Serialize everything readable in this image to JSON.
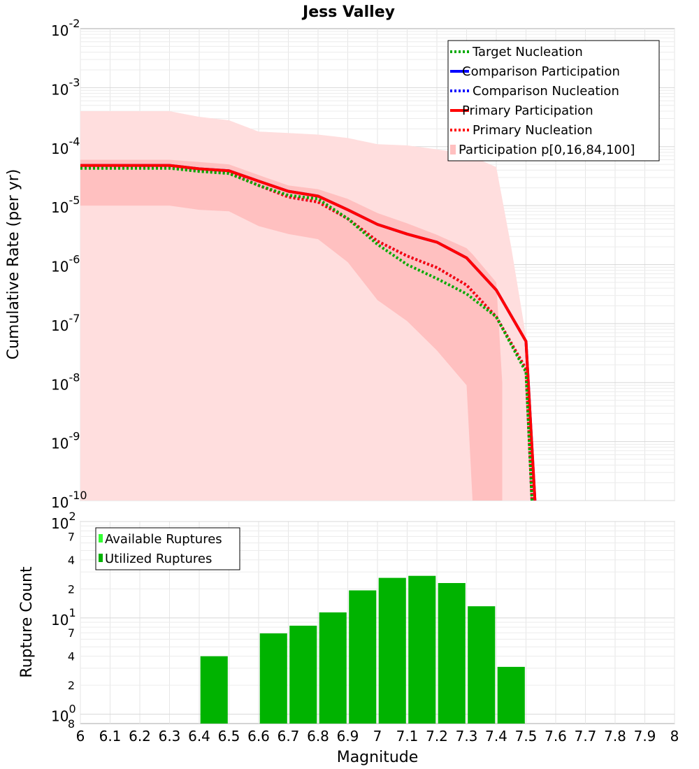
{
  "chart_data": [
    {
      "type": "line",
      "title": "Jess Valley",
      "ylabel": "Cumulative Rate (per yr)",
      "xlabel": "",
      "xlim": [
        6,
        8
      ],
      "ylim_log10": [
        -10,
        -2
      ],
      "y_scale": "log",
      "y_tick_labels": [
        {
          "base": "10",
          "exp": "-2"
        },
        {
          "base": "10",
          "exp": "-3"
        },
        {
          "base": "10",
          "exp": "-4"
        },
        {
          "base": "10",
          "exp": "-5"
        },
        {
          "base": "10",
          "exp": "-6"
        },
        {
          "base": "10",
          "exp": "-7"
        },
        {
          "base": "10",
          "exp": "-8"
        },
        {
          "base": "10",
          "exp": "-9"
        },
        {
          "base": "10",
          "exp": "-10"
        }
      ],
      "bands": [
        {
          "name": "Participation p[0,100]",
          "x": [
            6.0,
            6.3,
            6.4,
            6.5,
            6.6,
            6.7,
            6.8,
            6.9,
            7.0,
            7.1,
            7.2,
            7.3,
            7.4,
            7.45,
            7.5,
            7.52
          ],
          "hi": [
            0.0004,
            0.0004,
            0.00032,
            0.00028,
            0.00018,
            0.00017,
            0.00016,
            0.00014,
            0.00011,
            0.000105,
            9e-05,
            7.5e-05,
            4.5e-05,
            2e-06,
            6e-08,
            1e-10
          ],
          "lo": [
            1e-10,
            1e-10,
            1e-10,
            1e-10,
            1e-10,
            1e-10,
            1e-10,
            1e-10,
            1e-10,
            1e-10,
            1e-10,
            1e-10,
            1e-10,
            1e-10,
            1e-10,
            1e-10
          ]
        },
        {
          "name": "Participation p[16,84]",
          "x": [
            6.0,
            6.3,
            6.4,
            6.5,
            6.6,
            6.7,
            6.8,
            6.9,
            7.0,
            7.1,
            7.2,
            7.3,
            7.32,
            7.4,
            7.42
          ],
          "hi": [
            6e-05,
            6e-05,
            5.5e-05,
            5e-05,
            3.3e-05,
            2.2e-05,
            1.9e-05,
            1.3e-05,
            7.5e-06,
            5e-06,
            3.2e-06,
            1.9e-06,
            1.5e-06,
            5e-07,
            1e-08
          ],
          "lo": [
            1e-05,
            1e-05,
            8.5e-06,
            8e-06,
            4.5e-06,
            3.3e-06,
            2.7e-06,
            1.1e-06,
            2.5e-07,
            1.1e-07,
            3.5e-08,
            9e-09,
            1e-10,
            1e-10,
            1e-10
          ]
        }
      ],
      "series": [
        {
          "name": "Target Nucleation",
          "style": "dotted",
          "color": "#00aa00",
          "x": [
            6.0,
            6.3,
            6.4,
            6.5,
            6.6,
            6.7,
            6.8,
            6.9,
            7.0,
            7.1,
            7.2,
            7.3,
            7.4,
            7.5,
            7.52
          ],
          "values": [
            4.3e-05,
            4.3e-05,
            3.8e-05,
            3.5e-05,
            2.2e-05,
            1.5e-05,
            1.3e-05,
            6e-06,
            2.2e-06,
            1e-06,
            5.8e-07,
            3.2e-07,
            1.3e-07,
            1.5e-08,
            1e-10
          ]
        },
        {
          "name": "Comparison Participation",
          "style": "solid",
          "color": "#0000ff",
          "x": [
            6.0,
            6.3,
            6.4,
            6.5,
            6.6,
            6.7,
            6.8,
            6.9,
            7.0,
            7.1,
            7.2,
            7.3,
            7.4,
            7.5,
            7.53
          ],
          "values": [
            4.8e-05,
            4.8e-05,
            4.2e-05,
            3.9e-05,
            2.6e-05,
            1.75e-05,
            1.45e-05,
            8.5e-06,
            4.8e-06,
            3.3e-06,
            2.4e-06,
            1.3e-06,
            3.7e-07,
            5e-08,
            1e-10
          ]
        },
        {
          "name": "Comparison Nucleation",
          "style": "dotted",
          "color": "#0000ff",
          "x": [
            6.0,
            6.3,
            6.4,
            6.5,
            6.6,
            6.7,
            6.8,
            6.9,
            7.0,
            7.1,
            7.2,
            7.3,
            7.4,
            7.5,
            7.52
          ],
          "values": [
            4.5e-05,
            4.5e-05,
            3.9e-05,
            3.6e-05,
            2.2e-05,
            1.4e-05,
            1.15e-05,
            6e-06,
            2.5e-06,
            1.4e-06,
            8.9e-07,
            4.5e-07,
            1.3e-07,
            1.7e-08,
            1e-10
          ]
        },
        {
          "name": "Primary Participation",
          "style": "solid",
          "color": "#ff0000",
          "x": [
            6.0,
            6.3,
            6.4,
            6.5,
            6.6,
            6.7,
            6.8,
            6.9,
            7.0,
            7.1,
            7.2,
            7.3,
            7.4,
            7.5,
            7.53
          ],
          "values": [
            4.8e-05,
            4.8e-05,
            4.2e-05,
            3.9e-05,
            2.6e-05,
            1.75e-05,
            1.45e-05,
            8.5e-06,
            4.8e-06,
            3.3e-06,
            2.4e-06,
            1.3e-06,
            3.7e-07,
            5e-08,
            1e-10
          ]
        },
        {
          "name": "Primary Nucleation",
          "style": "dotted",
          "color": "#ff0000",
          "x": [
            6.0,
            6.3,
            6.4,
            6.5,
            6.6,
            6.7,
            6.8,
            6.9,
            7.0,
            7.1,
            7.2,
            7.3,
            7.4,
            7.5,
            7.52
          ],
          "values": [
            4.5e-05,
            4.5e-05,
            3.9e-05,
            3.6e-05,
            2.2e-05,
            1.4e-05,
            1.15e-05,
            6e-06,
            2.5e-06,
            1.4e-06,
            8.9e-07,
            4.5e-07,
            1.3e-07,
            1.7e-08,
            1e-10
          ]
        }
      ],
      "legend": {
        "position": "top-right",
        "entries": [
          {
            "label": "Target Nucleation",
            "style": "dotted",
            "color": "#00aa00"
          },
          {
            "label": "Comparison Participation",
            "style": "solid",
            "color": "#0000ff"
          },
          {
            "label": "Comparison Nucleation",
            "style": "dotted",
            "color": "#0000ff"
          },
          {
            "label": "Primary Participation",
            "style": "solid",
            "color": "#ff0000"
          },
          {
            "label": "Primary Nucleation",
            "style": "dotted",
            "color": "#ff0000"
          },
          {
            "label": "Participation p[0,16,84,100]",
            "style": "band",
            "color": "#ffc0c0"
          }
        ]
      },
      "grid": true
    },
    {
      "type": "bar",
      "title": "",
      "ylabel": "Rupture Count",
      "xlabel": "Magnitude",
      "y_scale": "log",
      "ylim": [
        0.8,
        100
      ],
      "xlim": [
        6,
        8
      ],
      "x_tick_labels": [
        "6",
        "6.1",
        "6.2",
        "6.3",
        "6.4",
        "6.5",
        "6.6",
        "6.7",
        "6.8",
        "6.9",
        "7",
        "7.1",
        "7.2",
        "7.3",
        "7.4",
        "7.5",
        "7.6",
        "7.7",
        "7.8",
        "7.9",
        "8"
      ],
      "y_tick_labels": {
        "major": [
          {
            "base": "10",
            "exp": "2",
            "value": 100
          },
          {
            "base": "10",
            "exp": "1",
            "value": 10
          },
          {
            "base": "10",
            "exp": "0",
            "value": 1
          }
        ],
        "minor": [
          {
            "label": "7",
            "value": 70
          },
          {
            "label": "4",
            "value": 40
          },
          {
            "label": "2",
            "value": 20
          },
          {
            "label": "7",
            "value": 7
          },
          {
            "label": "4",
            "value": 4
          },
          {
            "label": "2",
            "value": 2
          },
          {
            "label": "8",
            "value": 0.8
          }
        ]
      },
      "bars": [
        {
          "x": 6.45,
          "value": 4.0
        },
        {
          "x": 6.65,
          "value": 6.9
        },
        {
          "x": 6.75,
          "value": 8.3
        },
        {
          "x": 6.85,
          "value": 11.4
        },
        {
          "x": 6.95,
          "value": 19.3
        },
        {
          "x": 7.05,
          "value": 26.0
        },
        {
          "x": 7.15,
          "value": 27.3
        },
        {
          "x": 7.25,
          "value": 23.0
        },
        {
          "x": 7.35,
          "value": 13.2
        },
        {
          "x": 7.45,
          "value": 3.1
        }
      ],
      "legend": {
        "position": "top-left",
        "entries": [
          {
            "label": "Available Ruptures",
            "color": "#33ff33"
          },
          {
            "label": "Utilized Ruptures",
            "color": "#00b300"
          }
        ]
      },
      "grid": true
    }
  ]
}
